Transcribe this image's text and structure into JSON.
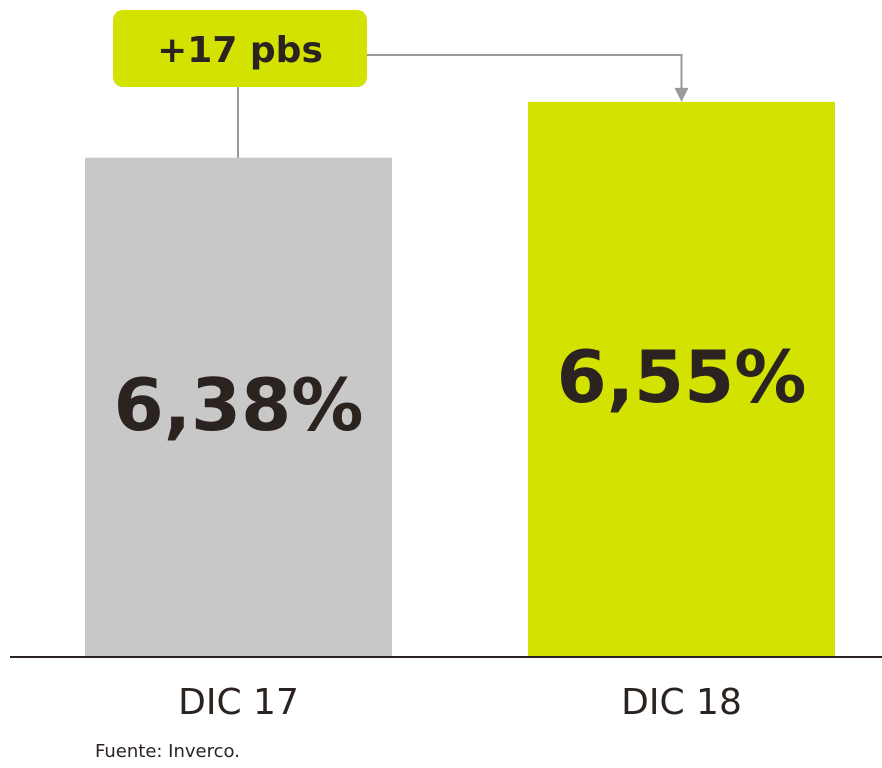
{
  "chart_data": {
    "type": "bar",
    "categories": [
      "DIC 17",
      "DIC 18"
    ],
    "series": [
      {
        "values": [
          6.38,
          6.55
        ],
        "value_labels": [
          "6,38%",
          "6,55%"
        ],
        "colors": [
          "#c8c8c8",
          "#d3e200"
        ]
      }
    ],
    "ylim": [
      4.86,
      6.86
    ],
    "annotation": "+17 pbs",
    "source": "Fuente: Inverco."
  }
}
